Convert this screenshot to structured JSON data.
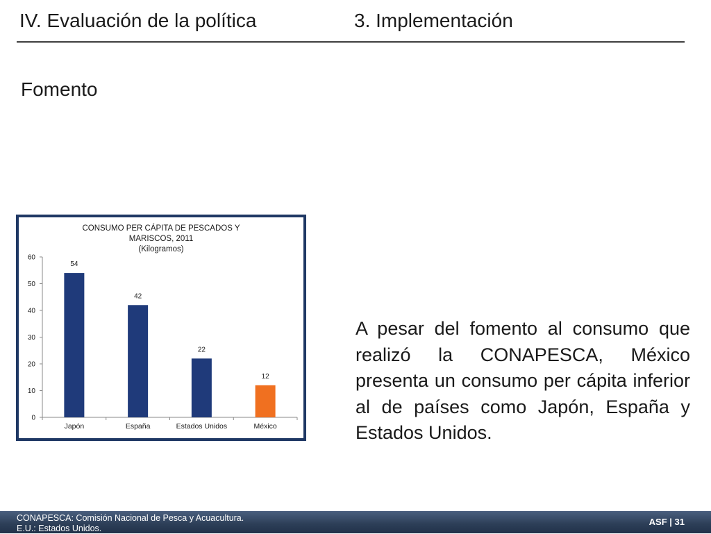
{
  "header": {
    "left_title": "IV. Evaluación de la política",
    "right_title": "3. Implementación"
  },
  "section_title": "Fomento",
  "chart_data": {
    "type": "bar",
    "title_lines": [
      "CONSUMO PER CÁPITA DE PESCADOS Y",
      "MARISCOS, 2011",
      "(Kilogramos)"
    ],
    "categories": [
      "Japón",
      "España",
      "Estados Unidos",
      "México"
    ],
    "values": [
      54,
      42,
      22,
      12
    ],
    "data_labels": [
      "54",
      "42",
      "22",
      "12"
    ],
    "bar_colors": [
      "#1f3a7a",
      "#1f3a7a",
      "#1f3a7a",
      "#f07020"
    ],
    "ylim": [
      0,
      60
    ],
    "yticks": [
      0,
      10,
      20,
      30,
      40,
      50,
      60
    ],
    "xlabel": "",
    "ylabel": "",
    "grid": false,
    "legend": "none"
  },
  "body_text": "A pesar del fomento al consumo que realizó la CONAPESCA, México presenta un consumo per cápita inferior al de países como Japón, España y Estados Unidos.",
  "footer": {
    "notes": [
      "CONAPESCA: Comisión Nacional de Pesca y Acuacultura.",
      "E.U.: Estados Unidos."
    ],
    "page_label": "ASF | 31"
  }
}
